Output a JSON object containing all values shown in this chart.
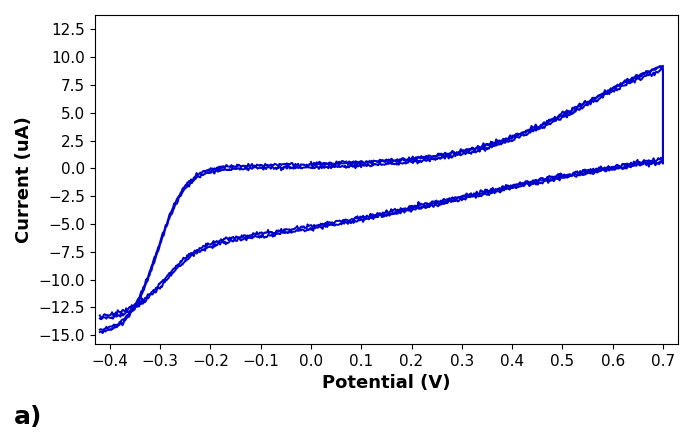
{
  "line_color": "#0000CC",
  "line_width": 1.4,
  "xlabel": "Potential (V)",
  "ylabel": "Current (uA)",
  "label_a": "a)",
  "xlim": [
    -0.43,
    0.73
  ],
  "ylim": [
    -15.8,
    13.8
  ],
  "xticks": [
    -0.4,
    -0.3,
    -0.2,
    -0.1,
    0.0,
    0.1,
    0.2,
    0.3,
    0.4,
    0.5,
    0.6,
    0.7
  ],
  "yticks": [
    -15.0,
    -12.5,
    -10.0,
    -7.5,
    -5.0,
    -2.5,
    0.0,
    2.5,
    5.0,
    7.5,
    10.0,
    12.5
  ],
  "background_color": "#ffffff",
  "xlabel_fontsize": 13,
  "ylabel_fontsize": 13,
  "tick_fontsize": 11,
  "label_a_fontsize": 18,
  "noise_scale": 0.09
}
